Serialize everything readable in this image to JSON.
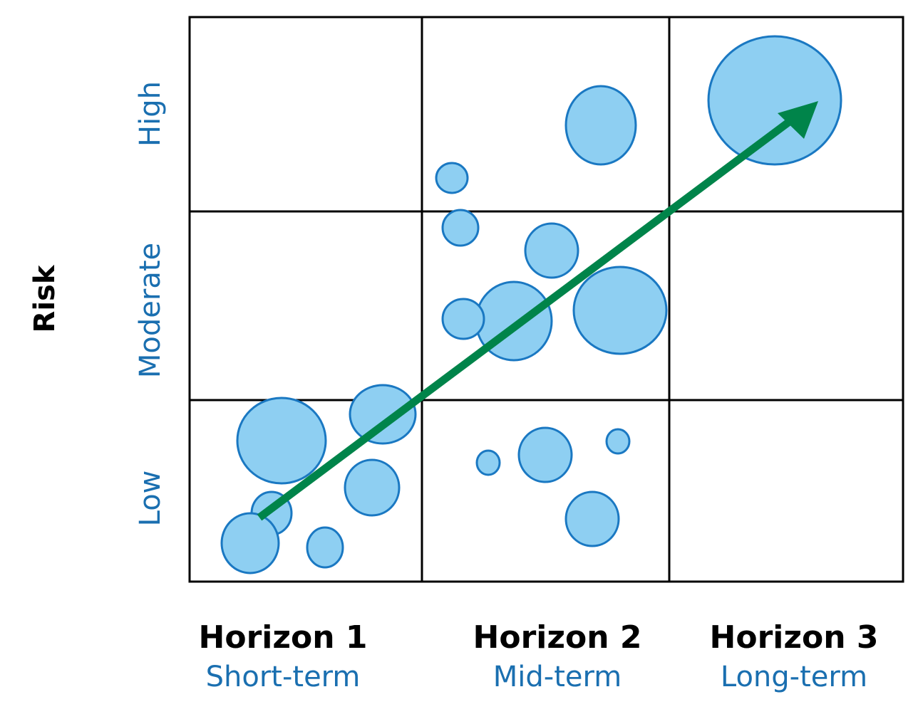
{
  "y_axis": {
    "title": "Risk",
    "levels": [
      "Low",
      "Moderate",
      "High"
    ]
  },
  "columns": [
    {
      "title": "Horizon 1",
      "subtitle": "Short-term"
    },
    {
      "title": "Horizon 2",
      "subtitle": "Mid-term"
    },
    {
      "title": "Horizon 3",
      "subtitle": "Long-term"
    }
  ],
  "colors": {
    "bubble_fill": "#8ecff2",
    "bubble_stroke": "#1a78c2",
    "arrow": "#00844a",
    "label_blue": "#1a6fb0",
    "title_black": "#000000",
    "grid": "#000000"
  },
  "icons": {
    "arrow": "trend-arrow-icon"
  }
}
